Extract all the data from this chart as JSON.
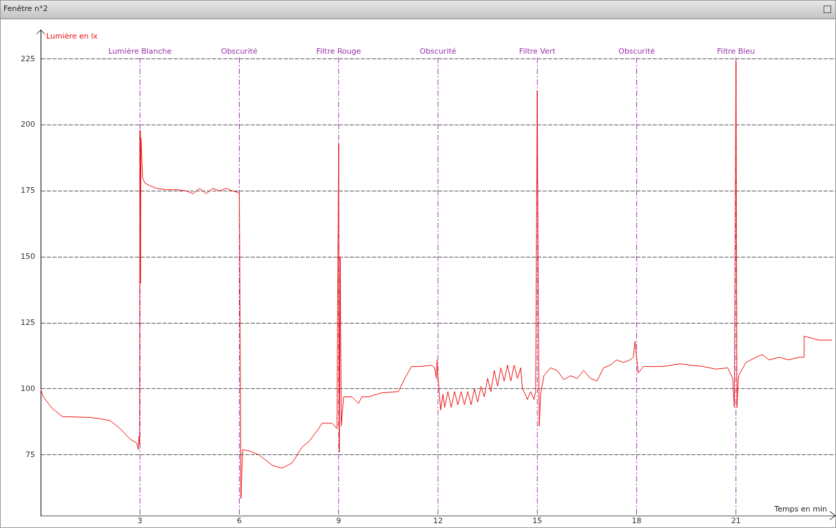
{
  "chart_data": {
    "type": "line",
    "title": "Fenêtre n°2",
    "xlabel": "Temps en min",
    "ylabel": "Lumière en lx",
    "xlim": [
      0,
      24
    ],
    "xticks": [
      3,
      6,
      9,
      12,
      15,
      18,
      21
    ],
    "ylim": [
      52,
      236
    ],
    "yticks": [
      75,
      100,
      125,
      150,
      175,
      200,
      225
    ],
    "grid": "y",
    "legend": false,
    "marker": "none",
    "ref_lines": [
      {
        "axis": "x",
        "value": 3,
        "label": "Lumière Blanche",
        "color": "#9933aa",
        "line_style": "dashed"
      },
      {
        "axis": "x",
        "value": 6,
        "label": "Obscurité",
        "color": "#9933aa",
        "line_style": "dashed"
      },
      {
        "axis": "x",
        "value": 9,
        "label": "Filtre Rouge",
        "color": "#9933aa",
        "line_style": "dashed"
      },
      {
        "axis": "x",
        "value": 12,
        "label": "Obscurité",
        "color": "#9933aa",
        "line_style": "dashed"
      },
      {
        "axis": "x",
        "value": 15,
        "label": "Filtre Vert",
        "color": "#9933aa",
        "line_style": "dashed"
      },
      {
        "axis": "x",
        "value": 18,
        "label": "Obscurité",
        "color": "#9933aa",
        "line_style": "dashed"
      },
      {
        "axis": "x",
        "value": 21,
        "label": "Filtre Bleu",
        "color": "#9933aa",
        "line_style": "dashed"
      }
    ],
    "series": [
      {
        "color": "#ee1111",
        "x": [
          0,
          0.08,
          0.35,
          0.66,
          1.5,
          1.8,
          2.1,
          2.4,
          2.7,
          2.9,
          2.95,
          2.97,
          2.99,
          3.0,
          3.01,
          3.03,
          3.08,
          3.15,
          3.3,
          3.5,
          3.8,
          4.1,
          4.4,
          4.6,
          4.8,
          5.0,
          5.2,
          5.4,
          5.6,
          5.8,
          5.95,
          6.0,
          6.03,
          6.05,
          6.08,
          6.1,
          6.3,
          6.6,
          7.0,
          7.3,
          7.6,
          7.9,
          8.1,
          8.4,
          8.5,
          8.8,
          8.95,
          9.0,
          9.02,
          9.05,
          9.08,
          9.15,
          9.4,
          9.6,
          9.7,
          9.9,
          10.3,
          10.8,
          11.0,
          11.2,
          11.5,
          11.8,
          11.9,
          11.95,
          11.97,
          12.0,
          12.03,
          12.08,
          12.15,
          12.2,
          12.3,
          12.4,
          12.5,
          12.6,
          12.7,
          12.8,
          12.9,
          13.0,
          13.1,
          13.2,
          13.3,
          13.4,
          13.5,
          13.6,
          13.7,
          13.8,
          13.9,
          14.0,
          14.1,
          14.2,
          14.3,
          14.4,
          14.5,
          14.55,
          14.6,
          14.7,
          14.8,
          14.9,
          14.95,
          15.0,
          15.03,
          15.06,
          15.1,
          15.2,
          15.4,
          15.6,
          15.8,
          16.0,
          16.2,
          16.4,
          16.6,
          16.8,
          17.0,
          17.2,
          17.4,
          17.6,
          17.8,
          17.9,
          17.95,
          18.05,
          18.2,
          18.8,
          19.3,
          20.0,
          20.4,
          20.75,
          20.9,
          20.95,
          21.0,
          21.03,
          21.08,
          21.3,
          21.6,
          21.8,
          22.0,
          22.3,
          22.6,
          22.9,
          23.05,
          23.06,
          23.5,
          23.9
        ],
        "values": [
          100,
          97,
          92.6,
          89.5,
          89.2,
          88.7,
          88,
          85,
          81,
          79.5,
          77,
          82,
          79,
          198,
          140,
          195,
          180,
          178,
          177,
          176,
          175.5,
          175.5,
          175,
          174,
          176,
          174,
          176,
          175,
          176,
          175,
          174.5,
          174,
          114,
          58.5,
          70,
          77,
          76.5,
          75,
          71,
          70,
          72,
          78,
          80,
          85,
          87,
          87,
          85,
          193,
          76,
          150,
          86,
          97,
          97,
          94.5,
          97,
          97,
          98.5,
          99,
          104,
          108.5,
          108.5,
          109,
          108,
          104,
          111,
          105,
          100,
          92,
          98,
          93,
          99,
          93,
          99,
          94,
          99,
          94,
          99,
          94,
          100,
          95,
          101,
          97,
          104,
          99,
          107,
          101,
          108,
          103,
          109,
          103,
          109,
          104,
          108,
          100,
          99,
          96,
          99,
          96,
          99,
          213,
          130,
          86,
          98,
          105,
          108,
          107,
          103.5,
          105,
          104,
          107,
          104,
          103,
          108,
          109,
          111,
          110,
          111,
          112,
          118,
          106,
          108.5,
          108.5,
          109.5,
          108.5,
          107.5,
          108,
          104,
          93,
          224,
          93,
          105,
          110,
          112,
          113,
          111,
          112,
          111,
          112,
          112,
          120,
          118.5,
          118.5
        ]
      }
    ]
  }
}
